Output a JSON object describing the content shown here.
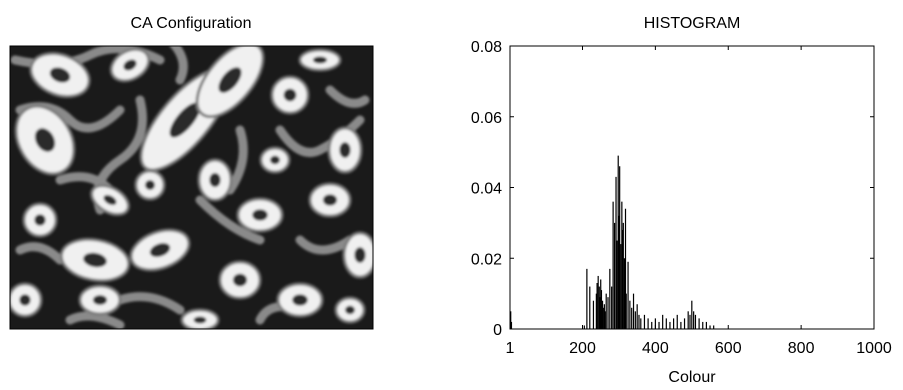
{
  "left_panel": {
    "title": "CA Configuration",
    "image_description_icon": "ca-configuration-image"
  },
  "chart_data": {
    "type": "bar",
    "title": "HISTOGRAM",
    "xlabel": "Colour",
    "ylabel": "",
    "xlim": [
      1,
      1000
    ],
    "ylim": [
      0,
      0.08
    ],
    "x_ticks": [
      1,
      200,
      400,
      600,
      800,
      1000
    ],
    "x_tick_labels": [
      "1",
      "200",
      "400",
      "600",
      "800",
      "1000"
    ],
    "y_ticks": [
      0,
      0.02,
      0.04,
      0.06,
      0.08
    ],
    "y_tick_labels": [
      "0",
      "0.02",
      "0.04",
      "0.06",
      "0.08"
    ],
    "grid": false,
    "bar_color": "#000000",
    "x": [
      3,
      5,
      205,
      212,
      220,
      230,
      238,
      240,
      243,
      246,
      248,
      250,
      252,
      255,
      258,
      260,
      262,
      265,
      270,
      275,
      280,
      284,
      288,
      292,
      295,
      298,
      300,
      302,
      305,
      308,
      310,
      312,
      315,
      318,
      320,
      325,
      330,
      335,
      340,
      345,
      350,
      355,
      360,
      370,
      380,
      390,
      400,
      410,
      420,
      430,
      440,
      450,
      460,
      470,
      480,
      490,
      495,
      500,
      505,
      510,
      520,
      530,
      540,
      550,
      560
    ],
    "values": [
      0.005,
      0.002,
      0.001,
      0.017,
      0.012,
      0.008,
      0.01,
      0.013,
      0.015,
      0.012,
      0.009,
      0.014,
      0.011,
      0.008,
      0.006,
      0.007,
      0.005,
      0.01,
      0.009,
      0.017,
      0.012,
      0.036,
      0.03,
      0.043,
      0.025,
      0.049,
      0.032,
      0.046,
      0.024,
      0.036,
      0.028,
      0.03,
      0.02,
      0.034,
      0.01,
      0.019,
      0.008,
      0.006,
      0.01,
      0.005,
      0.007,
      0.004,
      0.003,
      0.004,
      0.003,
      0.002,
      0.003,
      0.002,
      0.004,
      0.003,
      0.002,
      0.003,
      0.004,
      0.002,
      0.003,
      0.005,
      0.004,
      0.008,
      0.005,
      0.004,
      0.003,
      0.002,
      0.002,
      0.001,
      0.001
    ]
  }
}
